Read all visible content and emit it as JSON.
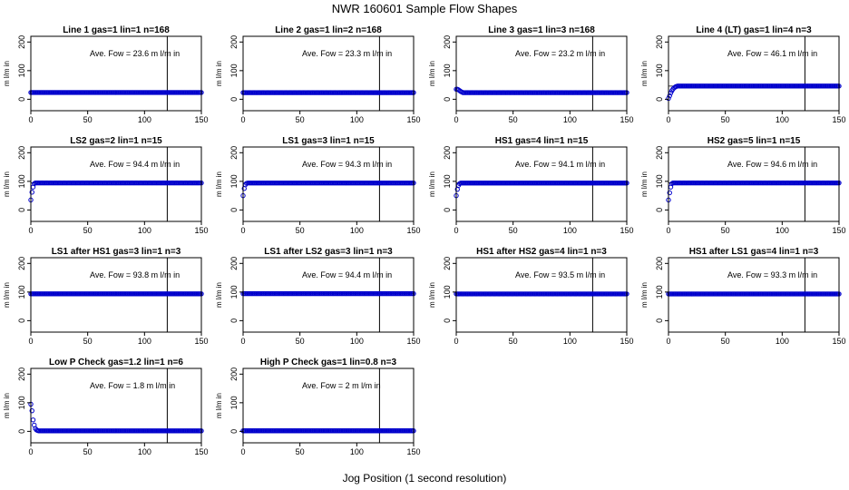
{
  "figure": {
    "title": "NWR  160601  Sample Flow Shapes",
    "xlabel": "Jog Position (1 second resolution)"
  },
  "chart_data": [
    {
      "type": "scatter",
      "title": "Line 1 gas=1 lin=1 n=168",
      "ylabel": "m l/m in",
      "annotation": "Ave. Fow =  23.6  m l/m in",
      "xlim": [
        0,
        150
      ],
      "ylim": [
        -40,
        220
      ],
      "xticks": [
        0,
        50,
        100,
        150
      ],
      "yticks": [
        0,
        100,
        200
      ],
      "vline": 120,
      "hline": null,
      "initial": [],
      "plateau": 23.6,
      "n_points": 151,
      "marker_color": "#0000cc"
    },
    {
      "type": "scatter",
      "title": "Line 2 gas=1 lin=2 n=168",
      "ylabel": "m l/m in",
      "annotation": "Ave. Fow =  23.3  m l/m in",
      "xlim": [
        0,
        150
      ],
      "ylim": [
        -40,
        220
      ],
      "xticks": [
        0,
        50,
        100,
        150
      ],
      "yticks": [
        0,
        100,
        200
      ],
      "vline": 120,
      "hline": null,
      "initial": [],
      "plateau": 23.3,
      "n_points": 151,
      "marker_color": "#0000cc"
    },
    {
      "type": "scatter",
      "title": "Line 3 gas=1 lin=3 n=168",
      "ylabel": "m l/m in",
      "annotation": "Ave. Fow =  23.2  m l/m in",
      "xlim": [
        0,
        150
      ],
      "ylim": [
        -40,
        220
      ],
      "xticks": [
        0,
        50,
        100,
        150
      ],
      "yticks": [
        0,
        100,
        200
      ],
      "vline": 120,
      "hline": null,
      "initial": [
        35,
        35,
        33,
        30,
        27,
        25
      ],
      "plateau": 23.2,
      "n_points": 151,
      "marker_color": "#0000cc"
    },
    {
      "type": "scatter",
      "title": "Line 4 (LT) gas=1 lin=4 n=3",
      "ylabel": "m l/m in",
      "annotation": "Ave. Fow =  46.1  m l/m in",
      "xlim": [
        0,
        150
      ],
      "ylim": [
        -40,
        220
      ],
      "xticks": [
        0,
        50,
        100,
        150
      ],
      "yticks": [
        0,
        100,
        200
      ],
      "vline": 120,
      "hline": 46.1,
      "initial": [
        3,
        12,
        22,
        30,
        36,
        40,
        43,
        45
      ],
      "plateau": 46.1,
      "n_points": 151,
      "marker_color": "#0000cc"
    },
    {
      "type": "scatter",
      "title": "LS2 gas=2 lin=1 n=15",
      "ylabel": "m l/m in",
      "annotation": "Ave. Fow =  94.4  m l/m in",
      "xlim": [
        0,
        150
      ],
      "ylim": [
        -40,
        220
      ],
      "xticks": [
        0,
        50,
        100,
        150
      ],
      "yticks": [
        0,
        100,
        200
      ],
      "vline": 120,
      "hline": 94.4,
      "initial": [
        35,
        62,
        80,
        92
      ],
      "plateau": 94.4,
      "n_points": 151,
      "marker_color": "#0000cc"
    },
    {
      "type": "scatter",
      "title": "LS1 gas=3 lin=1 n=15",
      "ylabel": "m l/m in",
      "annotation": "Ave. Fow =  94.3  m l/m in",
      "xlim": [
        0,
        150
      ],
      "ylim": [
        -40,
        220
      ],
      "xticks": [
        0,
        50,
        100,
        150
      ],
      "yticks": [
        0,
        100,
        200
      ],
      "vline": 120,
      "hline": 94.3,
      "initial": [
        50,
        75,
        88,
        93
      ],
      "plateau": 94.3,
      "n_points": 151,
      "marker_color": "#0000cc"
    },
    {
      "type": "scatter",
      "title": "HS1 gas=4 lin=1 n=15",
      "ylabel": "m l/m in",
      "annotation": "Ave. Fow =  94.1  m l/m in",
      "xlim": [
        0,
        150
      ],
      "ylim": [
        -40,
        220
      ],
      "xticks": [
        0,
        50,
        100,
        150
      ],
      "yticks": [
        0,
        100,
        200
      ],
      "vline": 120,
      "hline": 94.1,
      "initial": [
        50,
        72,
        86,
        92
      ],
      "plateau": 94.1,
      "n_points": 151,
      "marker_color": "#0000cc"
    },
    {
      "type": "scatter",
      "title": "HS2 gas=5 lin=1 n=15",
      "ylabel": "m l/m in",
      "annotation": "Ave. Fow =  94.6  m l/m in",
      "xlim": [
        0,
        150
      ],
      "ylim": [
        -40,
        220
      ],
      "xticks": [
        0,
        50,
        100,
        150
      ],
      "yticks": [
        0,
        100,
        200
      ],
      "vline": 120,
      "hline": 94.6,
      "initial": [
        35,
        60,
        80,
        92
      ],
      "plateau": 94.6,
      "n_points": 151,
      "marker_color": "#0000cc"
    },
    {
      "type": "scatter",
      "title": "LS1 after HS1 gas=3 lin=1 n=3",
      "ylabel": "m l/m in",
      "annotation": "Ave. Fow =  93.8  m l/m in",
      "xlim": [
        0,
        150
      ],
      "ylim": [
        -40,
        220
      ],
      "xticks": [
        0,
        50,
        100,
        150
      ],
      "yticks": [
        0,
        100,
        200
      ],
      "vline": 120,
      "hline": 93.8,
      "initial": [],
      "plateau": 93.8,
      "n_points": 151,
      "marker_color": "#0000cc"
    },
    {
      "type": "scatter",
      "title": "LS1 after LS2 gas=3 lin=1 n=3",
      "ylabel": "m l/m in",
      "annotation": "Ave. Fow =  94.4  m l/m in",
      "xlim": [
        0,
        150
      ],
      "ylim": [
        -40,
        220
      ],
      "xticks": [
        0,
        50,
        100,
        150
      ],
      "yticks": [
        0,
        100,
        200
      ],
      "vline": 120,
      "hline": 94.4,
      "initial": [],
      "plateau": 94.4,
      "n_points": 151,
      "marker_color": "#0000cc"
    },
    {
      "type": "scatter",
      "title": "HS1 after HS2 gas=4 lin=1 n=3",
      "ylabel": "m l/m in",
      "annotation": "Ave. Fow =  93.5  m l/m in",
      "xlim": [
        0,
        150
      ],
      "ylim": [
        -40,
        220
      ],
      "xticks": [
        0,
        50,
        100,
        150
      ],
      "yticks": [
        0,
        100,
        200
      ],
      "vline": 120,
      "hline": 93.5,
      "initial": [],
      "plateau": 93.5,
      "n_points": 151,
      "marker_color": "#0000cc"
    },
    {
      "type": "scatter",
      "title": "HS1 after LS1 gas=4 lin=1 n=3",
      "ylabel": "m l/m in",
      "annotation": "Ave. Fow =  93.3  m l/m in",
      "xlim": [
        0,
        150
      ],
      "ylim": [
        -40,
        220
      ],
      "xticks": [
        0,
        50,
        100,
        150
      ],
      "yticks": [
        0,
        100,
        200
      ],
      "vline": 120,
      "hline": 93.3,
      "initial": [],
      "plateau": 93.3,
      "n_points": 151,
      "marker_color": "#0000cc"
    },
    {
      "type": "scatter",
      "title": "Low P Check gas=1.2 lin=1 n=6",
      "ylabel": "m l/m in",
      "annotation": "Ave. Fow =  1.8  m l/m in",
      "xlim": [
        0,
        150
      ],
      "ylim": [
        -40,
        220
      ],
      "xticks": [
        0,
        50,
        100,
        150
      ],
      "yticks": [
        0,
        100,
        200
      ],
      "vline": 120,
      "hline": null,
      "initial": [
        95,
        72,
        40,
        22,
        10,
        5,
        3
      ],
      "plateau": 1.8,
      "n_points": 151,
      "marker_color": "#0000cc"
    },
    {
      "type": "scatter",
      "title": "High P Check gas=1 lin=0.8 n=3",
      "ylabel": "m l/m in",
      "annotation": "Ave. Fow =  2  m l/m in",
      "xlim": [
        0,
        150
      ],
      "ylim": [
        -40,
        220
      ],
      "xticks": [
        0,
        50,
        100,
        150
      ],
      "yticks": [
        0,
        100,
        200
      ],
      "vline": 120,
      "hline": null,
      "initial": [],
      "plateau": 2,
      "n_points": 151,
      "marker_color": "#0000cc"
    }
  ]
}
